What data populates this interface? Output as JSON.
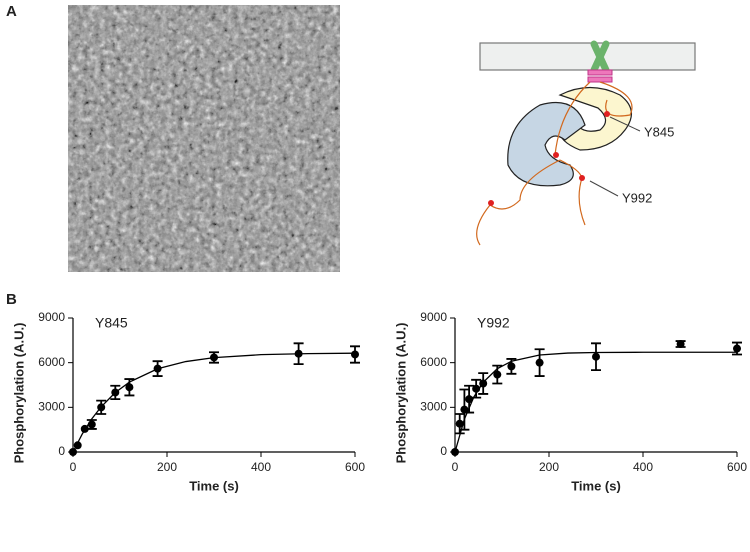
{
  "panels": [
    "A",
    "B"
  ],
  "diagram": {
    "labels": [
      "Y845",
      "Y992"
    ]
  },
  "chart_data": [
    {
      "type": "scatter",
      "title": "Y845",
      "xlabel": "Time (s)",
      "ylabel": "Phosphorylation (A.U.)",
      "xlim": [
        0,
        600
      ],
      "ylim": [
        0,
        9000
      ],
      "xticks": [
        0,
        200,
        400,
        600
      ],
      "yticks": [
        0,
        3000,
        6000,
        9000
      ],
      "color": "#000000",
      "series": [
        {
          "type": "scatter",
          "x": [
            0,
            10,
            25,
            40,
            60,
            90,
            120,
            180,
            300,
            480,
            600
          ],
          "values": [
            0,
            450,
            1550,
            1850,
            3000,
            4000,
            4350,
            5600,
            6350,
            6600,
            6550
          ],
          "errors": [
            0,
            0,
            0,
            300,
            450,
            450,
            550,
            500,
            350,
            700,
            550
          ]
        },
        {
          "type": "line",
          "x": [
            0,
            20,
            40,
            60,
            90,
            120,
            180,
            240,
            300,
            400,
            500,
            600
          ],
          "values": [
            0,
            1227,
            2228,
            3039,
            3995,
            4695,
            5589,
            6075,
            6338,
            6538,
            6609,
            6635
          ]
        }
      ]
    },
    {
      "type": "scatter",
      "title": "Y992",
      "xlabel": "Time (s)",
      "ylabel": "Phosphorylation (A.U.)",
      "xlim": [
        0,
        600
      ],
      "ylim": [
        0,
        9000
      ],
      "xticks": [
        0,
        200,
        400,
        600
      ],
      "yticks": [
        0,
        3000,
        6000,
        9000
      ],
      "color": "#000000",
      "series": [
        {
          "type": "scatter",
          "x": [
            0,
            10,
            20,
            30,
            45,
            60,
            90,
            120,
            180,
            300,
            480,
            600
          ],
          "values": [
            0,
            1900,
            2850,
            3550,
            4250,
            4600,
            5200,
            5750,
            6000,
            6400,
            7250,
            6950
          ],
          "errors": [
            0,
            650,
            1350,
            900,
            600,
            700,
            600,
            500,
            900,
            900,
            200,
            400
          ]
        },
        {
          "type": "line",
          "x": [
            0,
            20,
            40,
            60,
            90,
            120,
            180,
            240,
            300,
            400,
            500,
            600
          ],
          "values": [
            0,
            2211,
            3690,
            4683,
            5594,
            6092,
            6517,
            6645,
            6683,
            6698,
            6700,
            6700
          ]
        }
      ]
    }
  ]
}
